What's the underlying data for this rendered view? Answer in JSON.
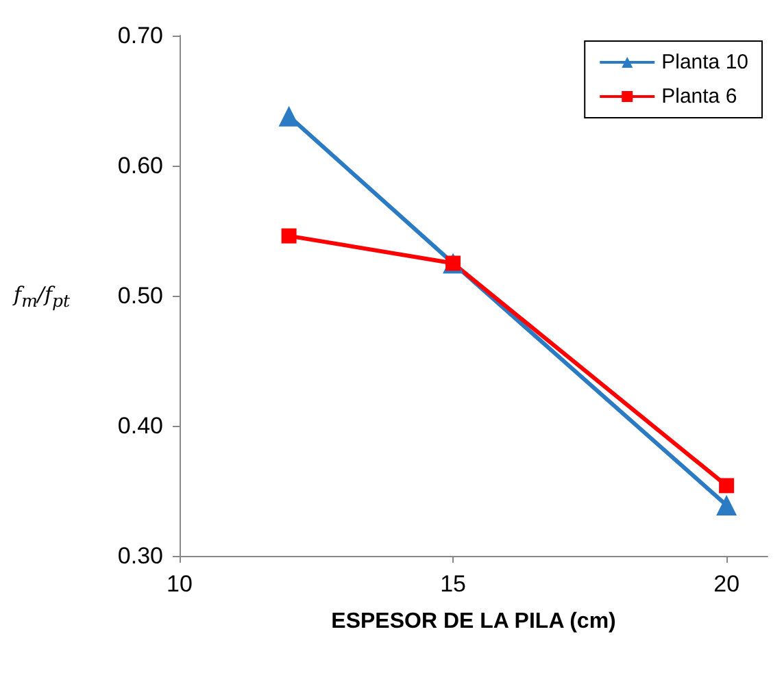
{
  "chart_data": {
    "type": "line",
    "xlabel": "ESPESOR DE LA PILA (cm)",
    "ylabel": "f$_{m}$/f$_{pt}$",
    "x": [
      12,
      15,
      20
    ],
    "xlim": [
      10,
      20.75
    ],
    "xticks": [
      10,
      15,
      20
    ],
    "ylim": [
      0.3,
      0.7
    ],
    "yticks": [
      {
        "value": 0.3,
        "label": "0.30"
      },
      {
        "value": 0.4,
        "label": "0.40"
      },
      {
        "value": 0.5,
        "label": "0.50"
      },
      {
        "value": 0.6,
        "label": "0.60"
      },
      {
        "value": 0.7,
        "label": "0.70"
      }
    ],
    "grid": false,
    "legend": "top right",
    "series": [
      {
        "name": "Planta 10",
        "color": "#2a7bc4",
        "marker": "triangle",
        "values": [
          0.638,
          0.525,
          0.339
        ]
      },
      {
        "name": "Planta 6",
        "color": "#ff0000",
        "marker": "square",
        "values": [
          0.546,
          0.525,
          0.354
        ]
      }
    ]
  }
}
